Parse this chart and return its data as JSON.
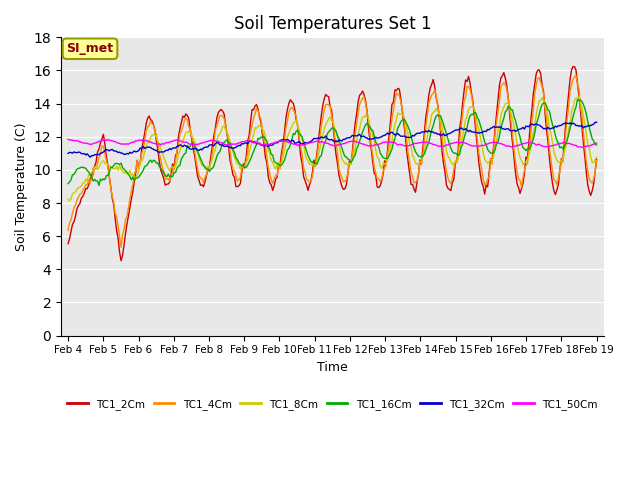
{
  "title": "Soil Temperatures Set 1",
  "xlabel": "Time",
  "ylabel": "Soil Temperature (C)",
  "ylim": [
    0,
    18
  ],
  "yticks": [
    0,
    2,
    4,
    6,
    8,
    10,
    12,
    14,
    16,
    18
  ],
  "annotation_text": "SI_met",
  "annotation_color": "#8B0000",
  "annotation_bg": "#FFFF99",
  "series_colors": {
    "TC1_2Cm": "#CC0000",
    "TC1_4Cm": "#FF8C00",
    "TC1_8Cm": "#CCCC00",
    "TC1_16Cm": "#00AA00",
    "TC1_32Cm": "#0000CC",
    "TC1_50Cm": "#FF00FF"
  },
  "legend_labels": [
    "TC1_2Cm",
    "TC1_4Cm",
    "TC1_8Cm",
    "TC1_16Cm",
    "TC1_32Cm",
    "TC1_50Cm"
  ],
  "num_points": 360,
  "x_tick_labels": [
    "Feb 4",
    "Feb 5",
    "Feb 6",
    "Feb 7",
    "Feb 8",
    "Feb 9",
    "Feb 10",
    "Feb 11",
    "Feb 12",
    "Feb 13",
    "Feb 14",
    "Feb 15",
    "Feb 16",
    "Feb 17",
    "Feb 18",
    "Feb 19"
  ]
}
